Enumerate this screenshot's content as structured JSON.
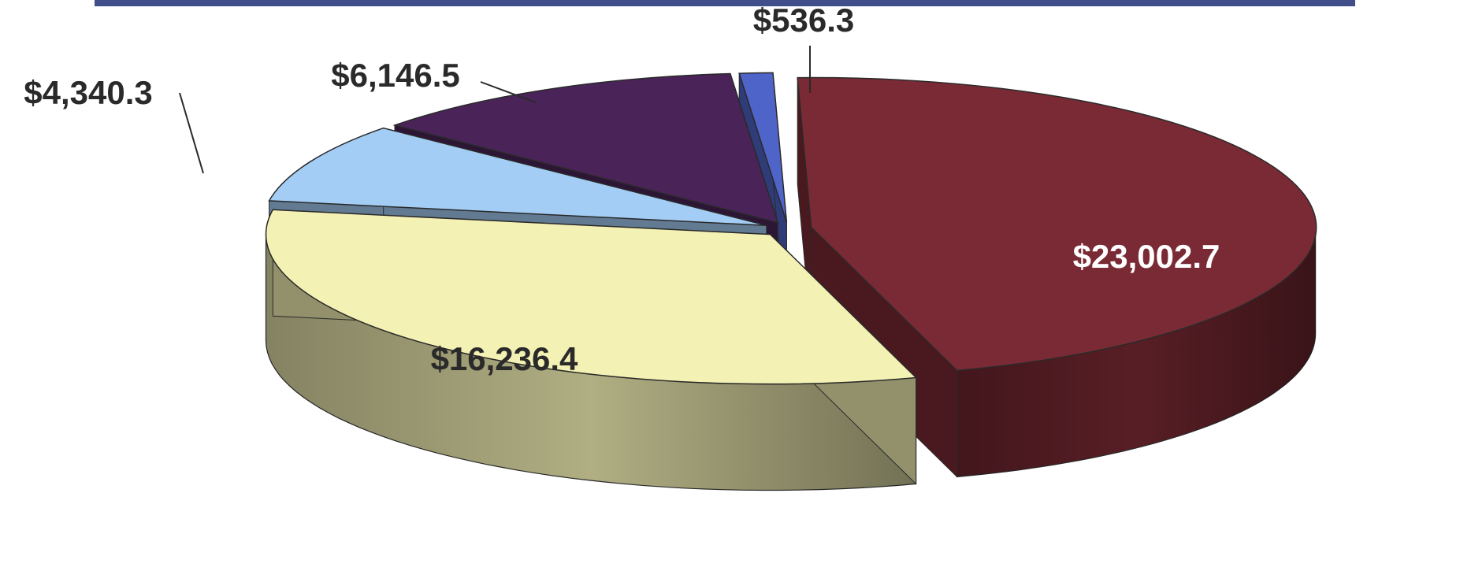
{
  "chart_data": {
    "type": "pie",
    "title": "",
    "three_d": true,
    "exploded": true,
    "legend": "none",
    "slices": [
      {
        "label_text": "$536.3",
        "value": 536.3,
        "color": "#4f64c8",
        "label_color": "#2a2a2a",
        "label_placement": "callout"
      },
      {
        "label_text": "$23,002.7",
        "value": 23002.7,
        "color": "#7a2a34",
        "label_color": "#ffffff",
        "label_placement": "inside"
      },
      {
        "label_text": "$16,236.4",
        "value": 16236.4,
        "color": "#f4f1b4",
        "label_color": "#2a2a2a",
        "label_placement": "inside"
      },
      {
        "label_text": "$4,340.3",
        "value": 4340.3,
        "color": "#a3cdf4",
        "label_color": "#2a2a2a",
        "label_placement": "callout"
      },
      {
        "label_text": "$6,146.5",
        "value": 6146.5,
        "color": "#4a2358",
        "label_color": "#2a2a2a",
        "label_placement": "callout"
      }
    ]
  },
  "colors": {
    "title_band": "#1f2f75",
    "leader_line": "#2a2a2a",
    "edge": "#2a2a2a"
  }
}
